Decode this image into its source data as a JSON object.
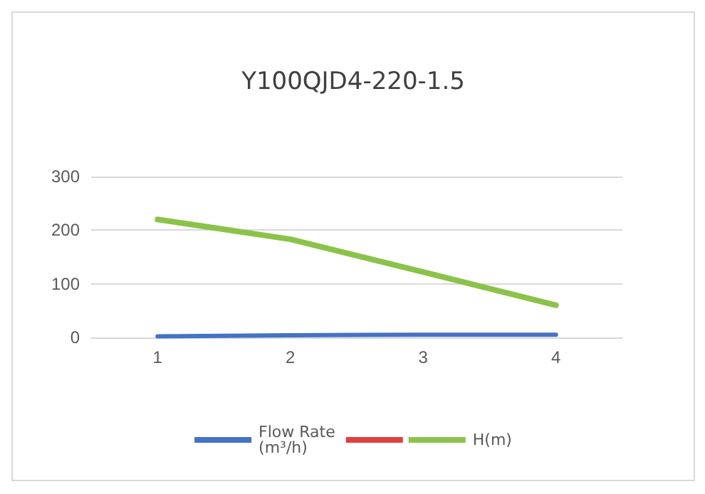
{
  "chart_data": {
    "type": "line",
    "title": "Y100QJD4-220-1.5",
    "categories": [
      "1",
      "2",
      "3",
      "4"
    ],
    "series": [
      {
        "name": "Flow Rate (m³/h)",
        "color": "#4472c4",
        "values": [
          2,
          4,
          5,
          5
        ]
      },
      {
        "color": "#e04040",
        "values": [
          null,
          null,
          null,
          null
        ]
      },
      {
        "name": "H(m)",
        "color": "#8bc34a",
        "values": [
          220,
          183,
          122,
          60
        ]
      }
    ],
    "ylim": [
      0,
      300
    ],
    "yticks": [
      0,
      100,
      200,
      300
    ],
    "grid": "y",
    "legend": "bottom",
    "marker": "none",
    "line_style": "solid"
  }
}
